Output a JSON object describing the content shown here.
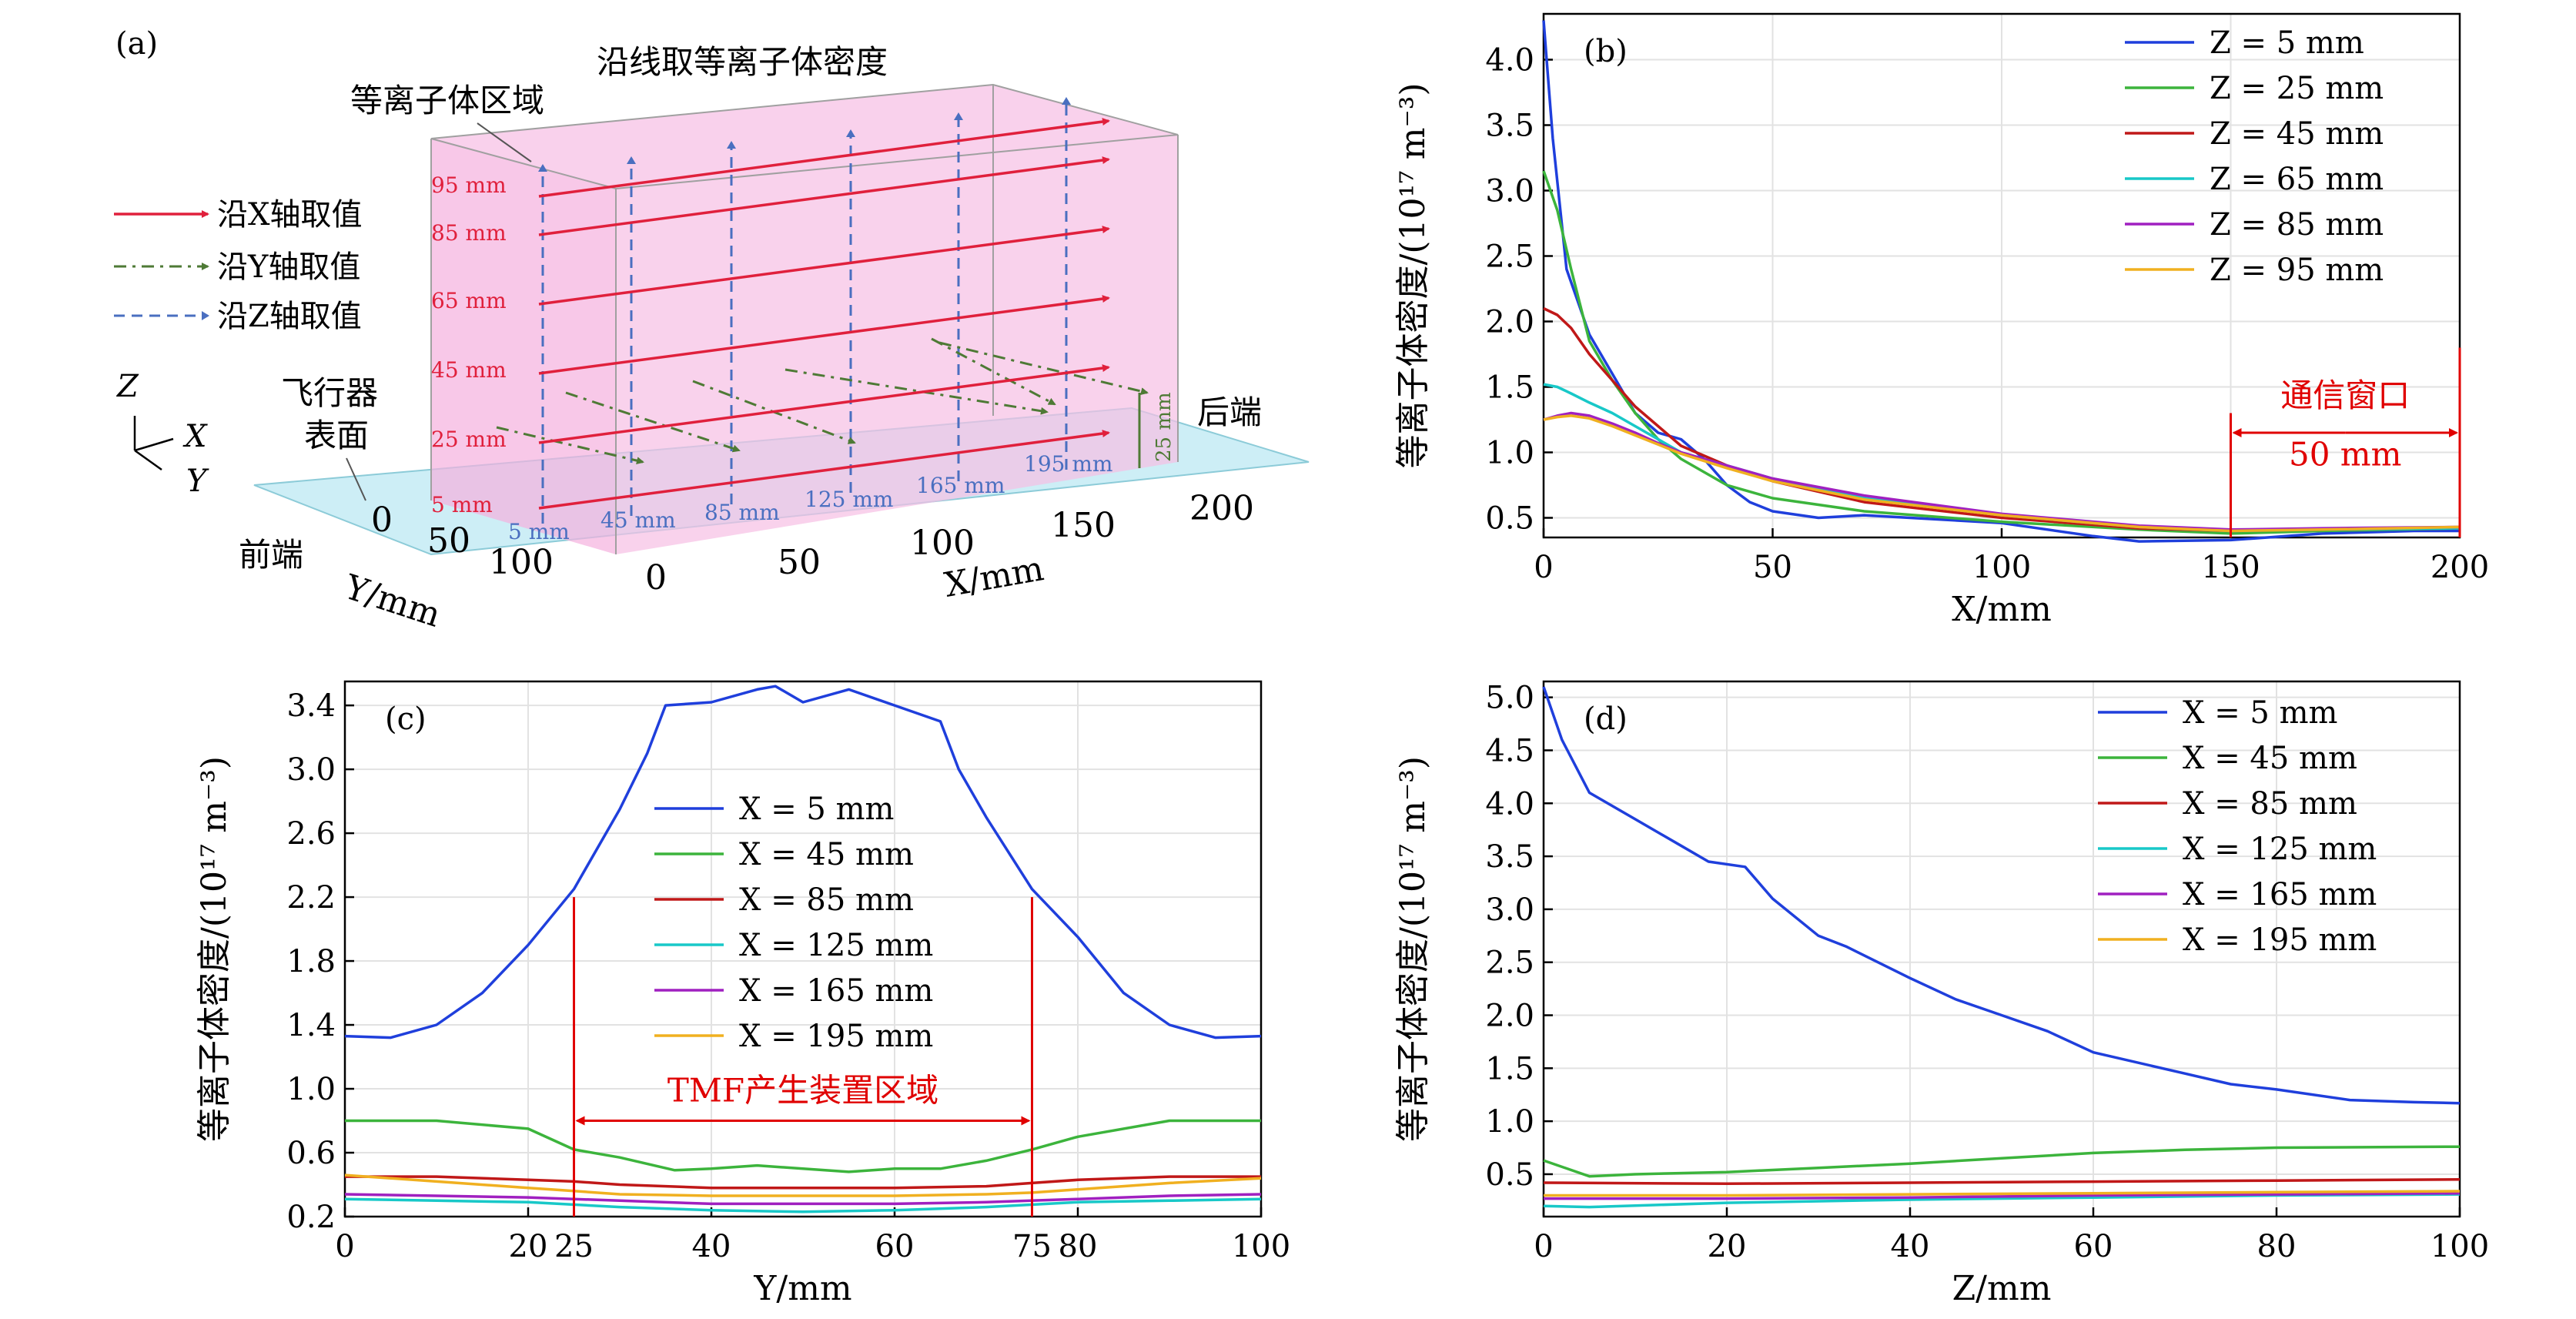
{
  "panel_a": {
    "panel_label": "(a)",
    "sampling_title": "沿线取等离子体密度",
    "plasma_region_label": "等离子体区域",
    "vehicle_label_line1": "飞行器",
    "vehicle_label_line2": "表面",
    "rear_label": "后端",
    "front_label": "前端",
    "legend": [
      "沿X轴取值",
      "沿Y轴取值",
      "沿Z轴取值"
    ],
    "z_labels": [
      "95 mm",
      "85 mm",
      "65 mm",
      "45 mm",
      "25 mm",
      "5 mm"
    ],
    "x_labels": [
      "5 mm",
      "45 mm",
      "85 mm",
      "125 mm",
      "165 mm",
      "195 mm"
    ],
    "gap_label": "25 mm",
    "axis_icon": [
      "Z",
      "X",
      "Y"
    ],
    "y_ticks": [
      "0",
      "50",
      "100"
    ],
    "y_axis_label": "Y/mm",
    "x_ticks": [
      "0",
      "50",
      "100",
      "150",
      "200"
    ],
    "x_axis_label": "X/mm"
  },
  "colors": {
    "blue": "#1f3fdc",
    "green": "#3cb43c",
    "red": "#c01818",
    "cyan": "#18c8c8",
    "purple": "#a020c0",
    "orange": "#f0b020",
    "annotation_red": "#e00000"
  },
  "chart_data": [
    {
      "id": "b",
      "panel_label": "(b)",
      "type": "line",
      "xlabel": "X/mm",
      "ylabel": "等离子体密度/(10¹⁷ m⁻³)",
      "xlim": [
        0,
        200
      ],
      "ylim": [
        0.35,
        4.35
      ],
      "xticks": [
        0,
        50,
        100,
        150,
        200
      ],
      "yticks": [
        0.5,
        1.0,
        1.5,
        2.0,
        2.5,
        3.0,
        3.5,
        4.0
      ],
      "legend_position": "top-right",
      "annotation": {
        "label": "通信窗口",
        "value_label": "50 mm",
        "x_start": 150,
        "x_end": 200
      },
      "series": [
        {
          "name": "Z = 5 mm",
          "color": "blue",
          "x": [
            0,
            2,
            5,
            10,
            15,
            20,
            25,
            30,
            35,
            40,
            45,
            50,
            60,
            70,
            80,
            100,
            120,
            130,
            150,
            170,
            190,
            200
          ],
          "y": [
            4.3,
            3.4,
            2.4,
            1.9,
            1.6,
            1.3,
            1.15,
            1.1,
            0.95,
            0.75,
            0.62,
            0.55,
            0.5,
            0.52,
            0.5,
            0.46,
            0.36,
            0.32,
            0.33,
            0.38,
            0.4,
            0.4
          ]
        },
        {
          "name": "Z = 25 mm",
          "color": "green",
          "x": [
            0,
            3,
            6,
            10,
            15,
            20,
            25,
            30,
            40,
            50,
            70,
            100,
            130,
            150,
            170,
            200
          ],
          "y": [
            3.15,
            2.85,
            2.4,
            1.85,
            1.55,
            1.3,
            1.1,
            0.95,
            0.75,
            0.65,
            0.55,
            0.47,
            0.41,
            0.38,
            0.4,
            0.42
          ]
        },
        {
          "name": "Z = 45 mm",
          "color": "red",
          "x": [
            0,
            3,
            6,
            10,
            15,
            20,
            25,
            30,
            40,
            50,
            70,
            100,
            130,
            150,
            170,
            200
          ],
          "y": [
            2.1,
            2.05,
            1.95,
            1.75,
            1.55,
            1.35,
            1.2,
            1.05,
            0.9,
            0.78,
            0.62,
            0.5,
            0.42,
            0.4,
            0.41,
            0.42
          ]
        },
        {
          "name": "Z = 65 mm",
          "color": "cyan",
          "x": [
            0,
            3,
            6,
            10,
            15,
            20,
            25,
            30,
            40,
            50,
            70,
            100,
            130,
            150,
            170,
            200
          ],
          "y": [
            1.52,
            1.5,
            1.45,
            1.38,
            1.3,
            1.2,
            1.1,
            1.0,
            0.9,
            0.8,
            0.65,
            0.52,
            0.43,
            0.4,
            0.41,
            0.42
          ]
        },
        {
          "name": "Z = 85 mm",
          "color": "purple",
          "x": [
            0,
            3,
            6,
            10,
            15,
            20,
            25,
            30,
            40,
            50,
            70,
            100,
            130,
            150,
            170,
            200
          ],
          "y": [
            1.25,
            1.28,
            1.3,
            1.28,
            1.22,
            1.15,
            1.07,
            1.0,
            0.9,
            0.8,
            0.67,
            0.53,
            0.44,
            0.41,
            0.42,
            0.43
          ]
        },
        {
          "name": "Z = 95 mm",
          "color": "orange",
          "x": [
            0,
            3,
            6,
            10,
            15,
            20,
            25,
            30,
            40,
            50,
            70,
            100,
            130,
            150,
            170,
            200
          ],
          "y": [
            1.25,
            1.27,
            1.28,
            1.26,
            1.2,
            1.13,
            1.06,
            0.99,
            0.88,
            0.78,
            0.64,
            0.52,
            0.43,
            0.4,
            0.41,
            0.43
          ]
        }
      ]
    },
    {
      "id": "c",
      "panel_label": "(c)",
      "type": "line",
      "xlabel": "Y/mm",
      "ylabel": "等离子体密度/(10¹⁷ m⁻³)",
      "xlim": [
        0,
        100
      ],
      "ylim": [
        0.2,
        3.55
      ],
      "xticks": [
        0,
        20,
        40,
        60,
        80,
        100
      ],
      "extra_xticks": [
        25,
        75
      ],
      "yticks": [
        0.2,
        0.6,
        1.0,
        1.4,
        1.8,
        2.2,
        2.6,
        3.0,
        3.4
      ],
      "legend_position": "center",
      "annotation": {
        "label": "TMF产生装置区域",
        "x_start": 25,
        "x_end": 75
      },
      "series": [
        {
          "name": "X = 5 mm",
          "color": "blue",
          "x": [
            0,
            5,
            10,
            15,
            20,
            25,
            30,
            33,
            35,
            40,
            45,
            47,
            50,
            55,
            60,
            65,
            67,
            70,
            75,
            80,
            85,
            90,
            95,
            100
          ],
          "y": [
            1.33,
            1.32,
            1.4,
            1.6,
            1.9,
            2.25,
            2.75,
            3.1,
            3.4,
            3.42,
            3.5,
            3.52,
            3.42,
            3.5,
            3.4,
            3.3,
            3.0,
            2.7,
            2.25,
            1.95,
            1.6,
            1.4,
            1.32,
            1.33
          ]
        },
        {
          "name": "X = 45 mm",
          "color": "green",
          "x": [
            0,
            10,
            20,
            25,
            30,
            36,
            40,
            45,
            50,
            55,
            60,
            65,
            70,
            75,
            80,
            90,
            100
          ],
          "y": [
            0.8,
            0.8,
            0.75,
            0.62,
            0.57,
            0.49,
            0.5,
            0.52,
            0.5,
            0.48,
            0.5,
            0.5,
            0.55,
            0.62,
            0.7,
            0.8,
            0.8
          ]
        },
        {
          "name": "X = 85 mm",
          "color": "red",
          "x": [
            0,
            10,
            20,
            25,
            30,
            40,
            50,
            60,
            70,
            75,
            80,
            90,
            100
          ],
          "y": [
            0.45,
            0.45,
            0.43,
            0.42,
            0.4,
            0.38,
            0.38,
            0.38,
            0.39,
            0.41,
            0.43,
            0.45,
            0.45
          ]
        },
        {
          "name": "X = 125 mm",
          "color": "cyan",
          "x": [
            0,
            10,
            20,
            30,
            40,
            50,
            60,
            70,
            80,
            90,
            100
          ],
          "y": [
            0.31,
            0.3,
            0.29,
            0.26,
            0.24,
            0.23,
            0.24,
            0.26,
            0.29,
            0.3,
            0.31
          ]
        },
        {
          "name": "X = 165 mm",
          "color": "purple",
          "x": [
            0,
            10,
            20,
            30,
            40,
            50,
            60,
            70,
            80,
            90,
            100
          ],
          "y": [
            0.34,
            0.33,
            0.32,
            0.3,
            0.28,
            0.28,
            0.28,
            0.29,
            0.31,
            0.33,
            0.34
          ]
        },
        {
          "name": "X = 195 mm",
          "color": "orange",
          "x": [
            0,
            10,
            20,
            25,
            30,
            40,
            50,
            60,
            70,
            75,
            80,
            90,
            100
          ],
          "y": [
            0.46,
            0.42,
            0.38,
            0.36,
            0.34,
            0.33,
            0.33,
            0.33,
            0.34,
            0.35,
            0.37,
            0.41,
            0.44
          ]
        }
      ]
    },
    {
      "id": "d",
      "panel_label": "(d)",
      "type": "line",
      "xlabel": "Z/mm",
      "ylabel": "等离子体密度/(10¹⁷ m⁻³)",
      "xlim": [
        0,
        100
      ],
      "ylim": [
        0.1,
        5.15
      ],
      "xticks": [
        0,
        20,
        40,
        60,
        80,
        100
      ],
      "yticks": [
        0.5,
        1.0,
        1.5,
        2.0,
        2.5,
        3.0,
        3.5,
        4.0,
        4.5,
        5.0
      ],
      "legend_position": "top-right",
      "series": [
        {
          "name": "X = 5 mm",
          "color": "blue",
          "x": [
            0,
            2,
            5,
            10,
            15,
            18,
            22,
            25,
            30,
            33,
            40,
            45,
            50,
            55,
            60,
            70,
            75,
            80,
            88,
            95,
            100
          ],
          "y": [
            5.1,
            4.6,
            4.1,
            3.85,
            3.6,
            3.45,
            3.4,
            3.1,
            2.75,
            2.65,
            2.35,
            2.15,
            2.0,
            1.85,
            1.65,
            1.45,
            1.35,
            1.3,
            1.2,
            1.18,
            1.17
          ]
        },
        {
          "name": "X = 45 mm",
          "color": "green",
          "x": [
            0,
            5,
            10,
            20,
            30,
            40,
            50,
            60,
            70,
            80,
            100
          ],
          "y": [
            0.63,
            0.48,
            0.5,
            0.52,
            0.56,
            0.6,
            0.65,
            0.7,
            0.73,
            0.75,
            0.76
          ]
        },
        {
          "name": "X = 85 mm",
          "color": "red",
          "x": [
            0,
            20,
            40,
            60,
            80,
            100
          ],
          "y": [
            0.42,
            0.41,
            0.42,
            0.43,
            0.44,
            0.45
          ]
        },
        {
          "name": "X = 125 mm",
          "color": "cyan",
          "x": [
            0,
            5,
            20,
            40,
            60,
            80,
            100
          ],
          "y": [
            0.2,
            0.19,
            0.23,
            0.26,
            0.28,
            0.3,
            0.31
          ]
        },
        {
          "name": "X = 165 mm",
          "color": "purple",
          "x": [
            0,
            20,
            40,
            60,
            80,
            100
          ],
          "y": [
            0.27,
            0.27,
            0.28,
            0.3,
            0.31,
            0.32
          ]
        },
        {
          "name": "X = 195 mm",
          "color": "orange",
          "x": [
            0,
            20,
            40,
            60,
            80,
            100
          ],
          "y": [
            0.3,
            0.3,
            0.31,
            0.32,
            0.33,
            0.34
          ]
        }
      ]
    }
  ]
}
